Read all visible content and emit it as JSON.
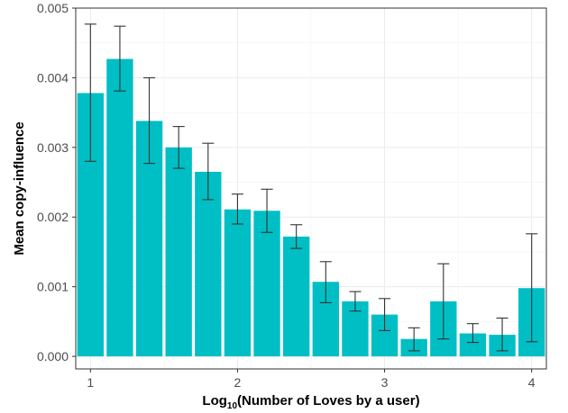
{
  "chart_data": {
    "type": "bar",
    "title": "",
    "xlabel": {
      "prefix": "Log",
      "subscript": "10",
      "suffix": "(Number of Loves by a user)"
    },
    "ylabel": "Mean copy-influence",
    "xlim": [
      0.9,
      4.1
    ],
    "ylim": [
      -0.00018,
      0.005
    ],
    "x_ticks": [
      1,
      2,
      3,
      4
    ],
    "x_tick_labels": [
      "1",
      "2",
      "3",
      "4"
    ],
    "y_ticks": [
      0,
      0.001,
      0.002,
      0.003,
      0.004,
      0.005
    ],
    "y_tick_labels": [
      "0.000",
      "0.001",
      "0.002",
      "0.003",
      "0.004",
      "0.005"
    ],
    "bar_width": 0.18,
    "grid": true,
    "bar_color": "#00BFC4",
    "errorbar_color": "#333333",
    "bars": [
      {
        "x": 1.0,
        "value": 0.00378,
        "lower": 0.0028,
        "upper": 0.00477
      },
      {
        "x": 1.2,
        "value": 0.00427,
        "lower": 0.00381,
        "upper": 0.00474
      },
      {
        "x": 1.4,
        "value": 0.00338,
        "lower": 0.00277,
        "upper": 0.004
      },
      {
        "x": 1.6,
        "value": 0.003,
        "lower": 0.0027,
        "upper": 0.0033
      },
      {
        "x": 1.8,
        "value": 0.00265,
        "lower": 0.00225,
        "upper": 0.00306
      },
      {
        "x": 2.0,
        "value": 0.00211,
        "lower": 0.0019,
        "upper": 0.00233
      },
      {
        "x": 2.2,
        "value": 0.00209,
        "lower": 0.00178,
        "upper": 0.0024
      },
      {
        "x": 2.4,
        "value": 0.00172,
        "lower": 0.00155,
        "upper": 0.00189
      },
      {
        "x": 2.6,
        "value": 0.00107,
        "lower": 0.00077,
        "upper": 0.00136
      },
      {
        "x": 2.8,
        "value": 0.00079,
        "lower": 0.00065,
        "upper": 0.00093
      },
      {
        "x": 3.0,
        "value": 0.0006,
        "lower": 0.00037,
        "upper": 0.00083
      },
      {
        "x": 3.2,
        "value": 0.00025,
        "lower": 8e-05,
        "upper": 0.00041
      },
      {
        "x": 3.4,
        "value": 0.00079,
        "lower": 0.00025,
        "upper": 0.00133
      },
      {
        "x": 3.6,
        "value": 0.00033,
        "lower": 0.0002,
        "upper": 0.00047
      },
      {
        "x": 3.8,
        "value": 0.00031,
        "lower": 8e-05,
        "upper": 0.00055
      },
      {
        "x": 4.0,
        "value": 0.00098,
        "lower": 0.00021,
        "upper": 0.00176
      }
    ]
  }
}
